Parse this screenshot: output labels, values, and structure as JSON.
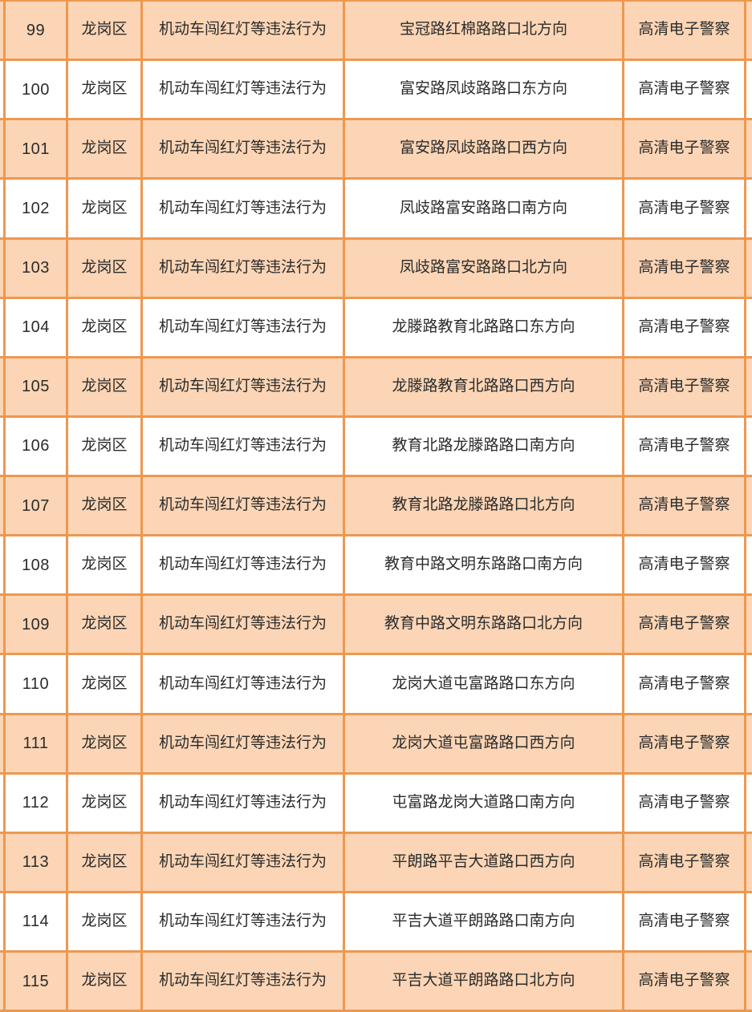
{
  "table": {
    "description_labels": {
      "district_repeated": "龙岗区",
      "violation_repeated": "机动车闯红灯等违法行为",
      "device_repeated": "高清电子警察"
    },
    "rows": [
      {
        "no": "99",
        "district": "龙岗区",
        "violation": "机动车闯红灯等违法行为",
        "location": "宝冠路红棉路路口北方向",
        "device": "高清电子警察"
      },
      {
        "no": "100",
        "district": "龙岗区",
        "violation": "机动车闯红灯等违法行为",
        "location": "富安路凤歧路路口东方向",
        "device": "高清电子警察"
      },
      {
        "no": "101",
        "district": "龙岗区",
        "violation": "机动车闯红灯等违法行为",
        "location": "富安路凤歧路路口西方向",
        "device": "高清电子警察"
      },
      {
        "no": "102",
        "district": "龙岗区",
        "violation": "机动车闯红灯等违法行为",
        "location": "凤歧路富安路路口南方向",
        "device": "高清电子警察"
      },
      {
        "no": "103",
        "district": "龙岗区",
        "violation": "机动车闯红灯等违法行为",
        "location": "凤歧路富安路路口北方向",
        "device": "高清电子警察"
      },
      {
        "no": "104",
        "district": "龙岗区",
        "violation": "机动车闯红灯等违法行为",
        "location": "龙滕路教育北路路口东方向",
        "device": "高清电子警察"
      },
      {
        "no": "105",
        "district": "龙岗区",
        "violation": "机动车闯红灯等违法行为",
        "location": "龙滕路教育北路路口西方向",
        "device": "高清电子警察"
      },
      {
        "no": "106",
        "district": "龙岗区",
        "violation": "机动车闯红灯等违法行为",
        "location": "教育北路龙滕路路口南方向",
        "device": "高清电子警察"
      },
      {
        "no": "107",
        "district": "龙岗区",
        "violation": "机动车闯红灯等违法行为",
        "location": "教育北路龙滕路路口北方向",
        "device": "高清电子警察"
      },
      {
        "no": "108",
        "district": "龙岗区",
        "violation": "机动车闯红灯等违法行为",
        "location": "教育中路文明东路路口南方向",
        "device": "高清电子警察"
      },
      {
        "no": "109",
        "district": "龙岗区",
        "violation": "机动车闯红灯等违法行为",
        "location": "教育中路文明东路路口北方向",
        "device": "高清电子警察"
      },
      {
        "no": "110",
        "district": "龙岗区",
        "violation": "机动车闯红灯等违法行为",
        "location": "龙岗大道屯富路路口东方向",
        "device": "高清电子警察"
      },
      {
        "no": "111",
        "district": "龙岗区",
        "violation": "机动车闯红灯等违法行为",
        "location": "龙岗大道屯富路路口西方向",
        "device": "高清电子警察"
      },
      {
        "no": "112",
        "district": "龙岗区",
        "violation": "机动车闯红灯等违法行为",
        "location": "屯富路龙岗大道路口南方向",
        "device": "高清电子警察"
      },
      {
        "no": "113",
        "district": "龙岗区",
        "violation": "机动车闯红灯等违法行为",
        "location": "平朗路平吉大道路口西方向",
        "device": "高清电子警察"
      },
      {
        "no": "114",
        "district": "龙岗区",
        "violation": "机动车闯红灯等违法行为",
        "location": "平吉大道平朗路路口南方向",
        "device": "高清电子警察"
      },
      {
        "no": "115",
        "district": "龙岗区",
        "violation": "机动车闯红灯等违法行为",
        "location": "平吉大道平朗路路口北方向",
        "device": "高清电子警察"
      }
    ]
  },
  "colors": {
    "border": "#ED9850",
    "row_alternate_fill": "#FBD5B5",
    "row_base_fill": "#FFFFFF",
    "text": "#2B2B2B"
  }
}
